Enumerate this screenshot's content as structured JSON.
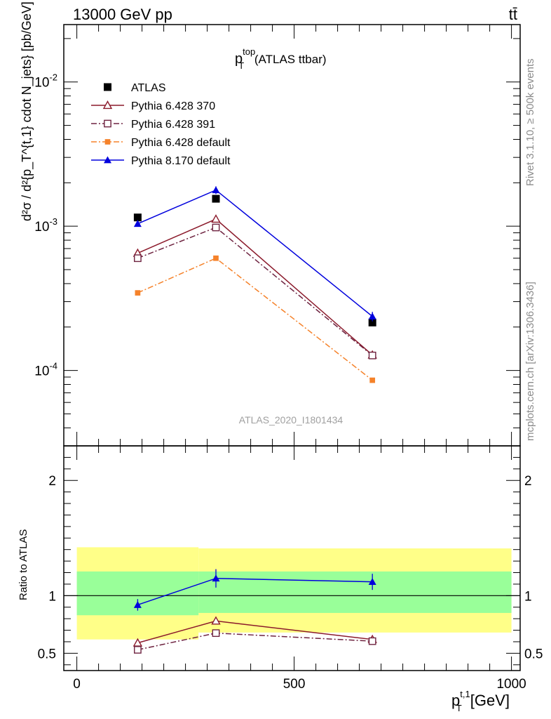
{
  "header": {
    "energy": "13000 GeV pp",
    "process": "tt̄"
  },
  "side": {
    "rivet": "Rivet 3.1.10, ≥ 500k events",
    "mcplots": "mcplots.cern.ch [arXiv:1306.3436]"
  },
  "analysis_id": "ATLAS_2020_I1801434",
  "chart_data": [
    {
      "type": "line",
      "title": {
        "main": "p",
        "sup": "top",
        "sub": "T",
        "suffix": " (ATLAS ttbar)"
      },
      "ylabel": {
        "text": "d²σ / d²{p_T^{t,1} cdot N_jets} [pb/GeV]"
      },
      "yscale": "log",
      "ylim": [
        3e-05,
        0.025
      ],
      "xlim": [
        -30,
        1020
      ],
      "yticks": [
        {
          "value": 0.01,
          "mant": "10",
          "exp": "-2"
        },
        {
          "value": 0.001,
          "mant": "10",
          "exp": "-3"
        },
        {
          "value": 0.0001,
          "mant": "10",
          "exp": "-4"
        }
      ],
      "legend_position": "top-left",
      "series": [
        {
          "name": "ATLAS",
          "color": "#000000",
          "marker": "square-filled",
          "dash": "",
          "line": false,
          "x": [
            140,
            320,
            680
          ],
          "y": [
            0.00115,
            0.00155,
            0.000215
          ]
        },
        {
          "name": "Pythia 6.428 370",
          "color": "#8b1a2b",
          "marker": "triangle-open",
          "dash": "",
          "line": true,
          "x": [
            140,
            320,
            680
          ],
          "y": [
            0.00065,
            0.00112,
            0.000128
          ]
        },
        {
          "name": "Pythia 6.428 391",
          "color": "#6e2340",
          "marker": "square-open",
          "dash": "8,3,2,3",
          "line": true,
          "x": [
            140,
            320,
            680
          ],
          "y": [
            0.0006,
            0.00098,
            0.000127
          ]
        },
        {
          "name": "Pythia 6.428 default",
          "color": "#f5822a",
          "marker": "square-filled-small",
          "dash": "8,3,2,3",
          "line": true,
          "x": [
            140,
            320,
            680
          ],
          "y": [
            0.000345,
            0.0006,
            8.55e-05
          ]
        },
        {
          "name": "Pythia 8.170 default",
          "color": "#0000dd",
          "marker": "triangle-filled",
          "dash": "",
          "line": true,
          "x": [
            140,
            320,
            680
          ],
          "y": [
            0.00104,
            0.00178,
            0.000237
          ],
          "err": [
            4e-05,
            0.00011,
            1.8e-05
          ]
        }
      ]
    },
    {
      "type": "line",
      "ylabel": "Ratio to ATLAS",
      "xlabel": {
        "main": "p",
        "sup": "t,1",
        "sub": "T",
        "suffix": " [GeV]"
      },
      "ylim": [
        0.35,
        2.3
      ],
      "xlim": [
        -30,
        1020
      ],
      "yticks": [
        0.5,
        1,
        2
      ],
      "xticks": [
        0,
        500,
        1000
      ],
      "bands": {
        "yellow": [
          {
            "x0": 0,
            "x1": 280,
            "lo": 0.62,
            "hi": 1.42
          },
          {
            "x0": 280,
            "x1": 1000,
            "lo": 0.68,
            "hi": 1.41
          }
        ],
        "green": [
          {
            "x0": 0,
            "x1": 280,
            "lo": 0.83,
            "hi": 1.21
          },
          {
            "x0": 280,
            "x1": 1000,
            "lo": 0.85,
            "hi": 1.21
          }
        ]
      },
      "series": [
        {
          "name": "Pythia 6.428 370",
          "color": "#8b1a2b",
          "marker": "triangle-open",
          "dash": "",
          "x": [
            140,
            320,
            680
          ],
          "y": [
            0.59,
            0.78,
            0.62
          ],
          "err": [
            0.01,
            0.02,
            0.015
          ]
        },
        {
          "name": "Pythia 6.428 391",
          "color": "#6e2340",
          "marker": "square-open",
          "dash": "8,3,2,3",
          "x": [
            140,
            320,
            680
          ],
          "y": [
            0.53,
            0.675,
            0.605
          ],
          "err": [
            0.008,
            0.015,
            0.02
          ]
        },
        {
          "name": "Pythia 8.170 default",
          "color": "#0000dd",
          "marker": "triangle-filled",
          "dash": "",
          "x": [
            140,
            320,
            680
          ],
          "y": [
            0.92,
            1.15,
            1.12
          ],
          "err": [
            0.05,
            0.08,
            0.07
          ]
        }
      ]
    }
  ]
}
